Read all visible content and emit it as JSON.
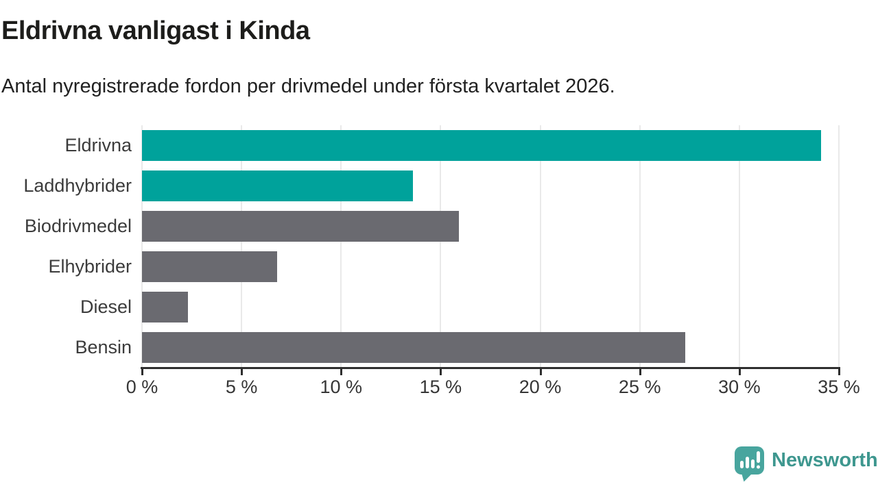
{
  "header": {
    "title": "Eldrivna vanligast i Kinda",
    "subtitle": "Antal nyregistrerade fordon per drivmedel under första kvartalet 2026."
  },
  "chart_data": {
    "type": "bar",
    "orientation": "horizontal",
    "title": "Eldrivna vanligast i Kinda",
    "subtitle": "Antal nyregistrerade fordon per drivmedel under första kvartalet 2026.",
    "categories": [
      "Eldrivna",
      "Laddhybrider",
      "Biodrivmedel",
      "Elhybrider",
      "Diesel",
      "Bensin"
    ],
    "values": [
      34.1,
      13.6,
      15.9,
      6.8,
      2.3,
      27.3
    ],
    "unit": "%",
    "bar_colors": [
      "#00a29b",
      "#00a29b",
      "#6a6a70",
      "#6a6a70",
      "#6a6a70",
      "#6a6a70"
    ],
    "xlim": [
      0,
      35
    ],
    "x_ticks": [
      0,
      5,
      10,
      15,
      20,
      25,
      30,
      35
    ],
    "x_tick_labels": [
      "0 %",
      "5 %",
      "10 %",
      "15 %",
      "20 %",
      "25 %",
      "30 %",
      "35 %"
    ],
    "xlabel": "",
    "ylabel": "",
    "grid": "vertical",
    "legend": "none"
  },
  "colors": {
    "accent_teal": "#00a29b",
    "bar_gray": "#6a6a70",
    "gridline": "#e9e9e9",
    "axis": "#2e2e2e",
    "title_text": "#1d1d1b",
    "label_text": "#3b3b3b"
  },
  "footer": {
    "brand": "Newsworthy",
    "brand_text_color": "#3e978f",
    "icon": "newsworthy-speech-bubble-chart-icon",
    "icon_color": "#48a59e"
  }
}
